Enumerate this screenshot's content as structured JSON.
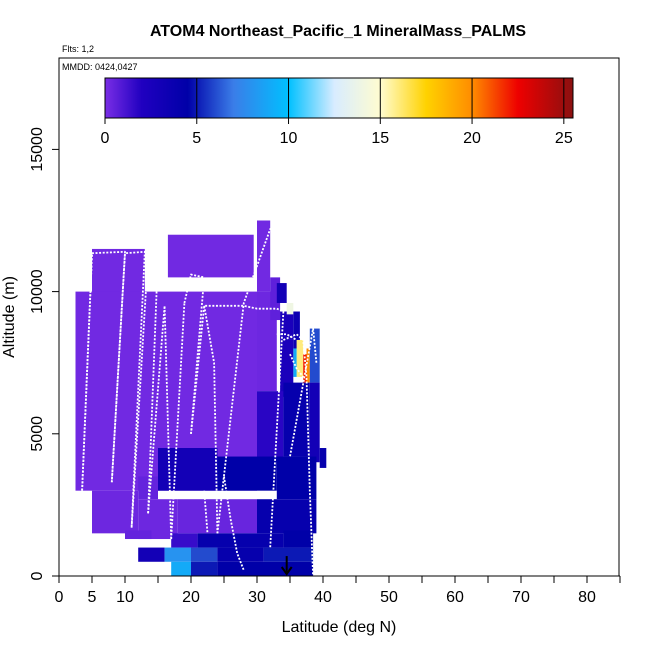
{
  "chart_data": {
    "type": "heatmap",
    "title": "ATOM4 Northeast_Pacific_1 MineralMass_PALMS",
    "subtitle_flights": "Flts: 1,2",
    "subtitle_dates": "MMDD: 0424,0427",
    "xlabel": "Latitude (deg N)",
    "ylabel": "Altitude (m)",
    "xlim": [
      0,
      85
    ],
    "ylim": [
      0,
      17500
    ],
    "x_ticks": [
      0,
      5,
      10,
      20,
      30,
      40,
      50,
      60,
      70,
      80
    ],
    "x_minor_ticks": [
      15,
      25,
      35,
      45,
      55,
      65,
      75,
      85
    ],
    "y_ticks": [
      0,
      5000,
      10000,
      15000
    ],
    "colorbar": {
      "min": 0,
      "max": 25.5,
      "ticks": [
        0,
        5,
        10,
        15,
        20,
        25
      ],
      "stops": [
        {
          "v": 0,
          "c": "#7a2ee6"
        },
        {
          "v": 2,
          "c": "#2000c0"
        },
        {
          "v": 4.5,
          "c": "#0000a8"
        },
        {
          "v": 7,
          "c": "#3a7de8"
        },
        {
          "v": 10,
          "c": "#00c0ff"
        },
        {
          "v": 12.5,
          "c": "#d8ecff"
        },
        {
          "v": 15,
          "c": "#fffcd0"
        },
        {
          "v": 17.5,
          "c": "#ffd200"
        },
        {
          "v": 20,
          "c": "#ff8c00"
        },
        {
          "v": 22.5,
          "c": "#ee0000"
        },
        {
          "v": 25.5,
          "c": "#8b1010"
        }
      ]
    },
    "cells": [
      [
        16.5,
        29.5,
        10500,
        12000,
        0.2
      ],
      [
        30,
        32,
        10000,
        12500,
        0.2
      ],
      [
        5,
        13,
        9800,
        11500,
        0.2
      ],
      [
        2.5,
        30,
        3000,
        10000,
        0.2
      ],
      [
        30,
        33,
        6500,
        10000,
        0.3
      ],
      [
        32,
        33.5,
        9000,
        10500,
        0.6
      ],
      [
        33.5,
        35.5,
        8300,
        9300,
        2.5
      ],
      [
        35.5,
        36.5,
        8000,
        9300,
        3.5
      ],
      [
        34.5,
        35.5,
        9200,
        9600,
        14
      ],
      [
        33,
        34.5,
        9600,
        10300,
        3
      ],
      [
        36,
        37,
        7000,
        8300,
        16
      ],
      [
        37,
        37.5,
        6800,
        7800,
        22
      ],
      [
        37.5,
        38,
        6800,
        8000,
        20
      ],
      [
        35.5,
        36,
        7000,
        8000,
        9
      ],
      [
        33.5,
        35.5,
        6300,
        8300,
        2.5
      ],
      [
        38,
        39.5,
        6800,
        8700,
        6
      ],
      [
        30,
        34,
        4000,
        6500,
        1.8
      ],
      [
        34,
        38,
        4200,
        6800,
        4
      ],
      [
        38,
        39.5,
        4000,
        6800,
        3
      ],
      [
        39.5,
        40.5,
        3800,
        4500,
        4
      ],
      [
        15,
        24,
        3000,
        4500,
        3
      ],
      [
        24,
        33,
        3000,
        4200,
        4.5
      ],
      [
        33,
        39,
        2700,
        4200,
        4.5
      ],
      [
        12,
        15,
        2700,
        3500,
        0.5
      ],
      [
        5,
        12,
        1500,
        3000,
        0.3
      ],
      [
        12,
        18,
        1300,
        2700,
        0.3
      ],
      [
        18,
        30,
        1500,
        2700,
        0.4
      ],
      [
        30,
        39,
        1500,
        2700,
        4
      ],
      [
        10,
        14,
        1300,
        1600,
        0.5
      ],
      [
        17,
        21,
        1000,
        1500,
        1.5
      ],
      [
        21,
        34,
        1000,
        1500,
        4
      ],
      [
        34,
        38.5,
        1000,
        1600,
        4.5
      ],
      [
        12,
        16,
        500,
        1000,
        3
      ],
      [
        16,
        20,
        500,
        1000,
        8
      ],
      [
        20,
        24,
        500,
        1000,
        6
      ],
      [
        24,
        31,
        500,
        1000,
        4
      ],
      [
        31,
        38.5,
        500,
        1000,
        5
      ],
      [
        17,
        20,
        0,
        500,
        9
      ],
      [
        20,
        24,
        0,
        500,
        5
      ],
      [
        24,
        38.5,
        0,
        500,
        4.5
      ]
    ],
    "flight_track": [
      [
        [
          5,
          11300
        ],
        [
          3.5,
          3000
        ]
      ],
      [
        [
          3.5,
          3000
        ],
        [
          5,
          11350
        ],
        [
          10,
          11400
        ],
        [
          8,
          3300
        ]
      ],
      [
        [
          8,
          3300
        ],
        [
          10,
          11350
        ],
        [
          13,
          11400
        ],
        [
          11,
          1700
        ]
      ],
      [
        [
          11,
          1700
        ],
        [
          13.5,
          11300
        ],
        [
          15,
          11300
        ],
        [
          13.5,
          2200
        ]
      ],
      [
        [
          13.5,
          2200
        ],
        [
          16,
          9500
        ],
        [
          17,
          1300
        ]
      ],
      [
        [
          17,
          1300
        ],
        [
          19,
          9600
        ]
      ],
      [
        [
          19,
          9600
        ],
        [
          20,
          10600
        ],
        [
          22,
          10500
        ],
        [
          20,
          5000
        ]
      ],
      [
        [
          20,
          5000
        ],
        [
          22,
          9500
        ],
        [
          28,
          9500
        ],
        [
          30,
          9400
        ],
        [
          33,
          9400
        ],
        [
          34,
          9300
        ]
      ],
      [
        [
          22,
          9500
        ],
        [
          23.5,
          7500
        ],
        [
          24,
          1500
        ]
      ],
      [
        [
          24,
          1500
        ],
        [
          28,
          9600
        ],
        [
          32,
          12200
        ],
        [
          33.5,
          12200
        ]
      ],
      [
        [
          34,
          9300
        ],
        [
          32,
          1000
        ]
      ],
      [
        [
          33,
          8500
        ],
        [
          34.5,
          8500
        ],
        [
          36,
          8300
        ]
      ],
      [
        [
          34,
          8300
        ],
        [
          36,
          8500
        ],
        [
          37,
          8300
        ],
        [
          37.5,
          7000
        ],
        [
          38,
          3000
        ],
        [
          38.5,
          0
        ]
      ],
      [
        [
          39,
          7500
        ],
        [
          38.5,
          8700
        ],
        [
          35,
          4200
        ]
      ],
      [
        [
          25,
          3500
        ],
        [
          26,
          2000
        ],
        [
          27,
          800
        ],
        [
          28,
          200
        ]
      ],
      [
        [
          22,
          3000
        ],
        [
          22.5,
          1500
        ]
      ],
      [
        [
          35,
          7800
        ],
        [
          36,
          7300
        ],
        [
          37,
          7000
        ]
      ]
    ],
    "arrow_latitude": 34.5,
    "arrow_from_altitude": 700,
    "arrow_to_altitude": 0
  }
}
